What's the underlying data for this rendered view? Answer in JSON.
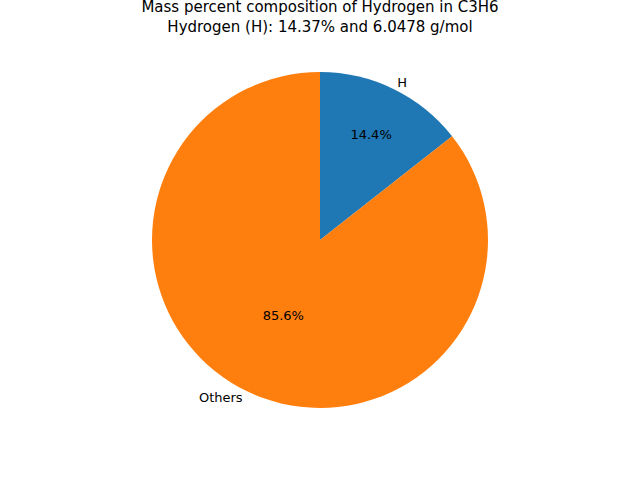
{
  "chart_data": {
    "type": "pie",
    "title": "Mass percent composition of Hydrogen in C3H6\nHydrogen (H): 14.37% and 6.0478 g/mol",
    "categories": [
      "H",
      "Others"
    ],
    "values": [
      14.4,
      85.6
    ],
    "value_labels": [
      "14.4%",
      "85.6%"
    ],
    "colors": [
      "#1f77b4",
      "#ff7f0e"
    ],
    "data_labels": true
  }
}
